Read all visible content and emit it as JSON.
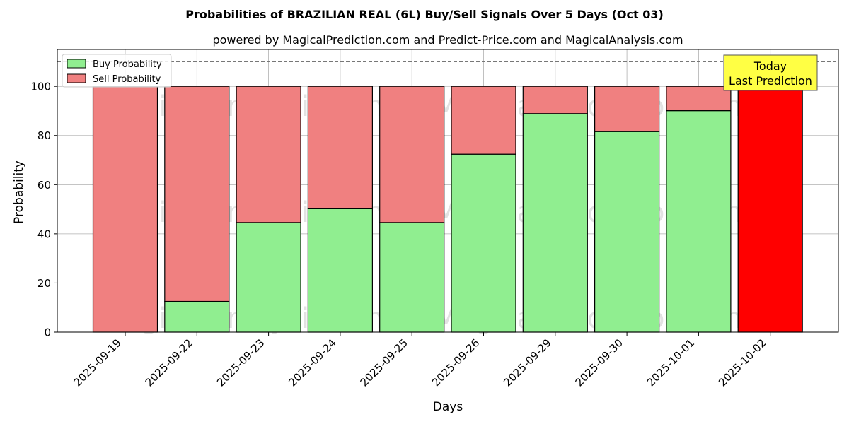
{
  "chart_data": {
    "type": "bar",
    "stacked": true,
    "title": "Probabilities of BRAZILIAN REAL (6L) Buy/Sell Signals Over 5 Days (Oct 03)",
    "subtitle": "powered by MagicalPrediction.com and Predict-Price.com and MagicalAnalysis.com",
    "xlabel": "Days",
    "ylabel": "Probability",
    "ylim": [
      0,
      115
    ],
    "yticks": [
      0,
      20,
      40,
      60,
      80,
      100
    ],
    "reference_line": 110,
    "grid": true,
    "legend_position": "top-left",
    "categories": [
      "2025-09-19",
      "2025-09-22",
      "2025-09-23",
      "2025-09-24",
      "2025-09-25",
      "2025-09-26",
      "2025-09-29",
      "2025-09-30",
      "2025-10-01",
      "2025-10-02"
    ],
    "series": [
      {
        "name": "Buy Probability",
        "color": "#90ee90",
        "values": [
          0,
          12.5,
          44.6,
          50.2,
          44.6,
          72.4,
          88.9,
          81.6,
          90.1,
          0
        ]
      },
      {
        "name": "Sell Probability",
        "color": "#f08080",
        "values": [
          100,
          87.5,
          55.4,
          49.8,
          55.4,
          27.6,
          11.1,
          18.4,
          9.9,
          100
        ]
      }
    ],
    "highlight": {
      "category": "2025-10-02",
      "color": "#ff0000"
    },
    "annotation": {
      "lines": [
        "Today",
        "Last Prediction"
      ],
      "color": "#ffff44"
    },
    "watermarks": [
      "MagicalAnalysis.com",
      "MagicalPrediction.com",
      "MagicalAnalysis.com",
      "MagicalPrediction.com",
      "MagicalAnalysis.com",
      "MagicalPrediction.com"
    ]
  }
}
